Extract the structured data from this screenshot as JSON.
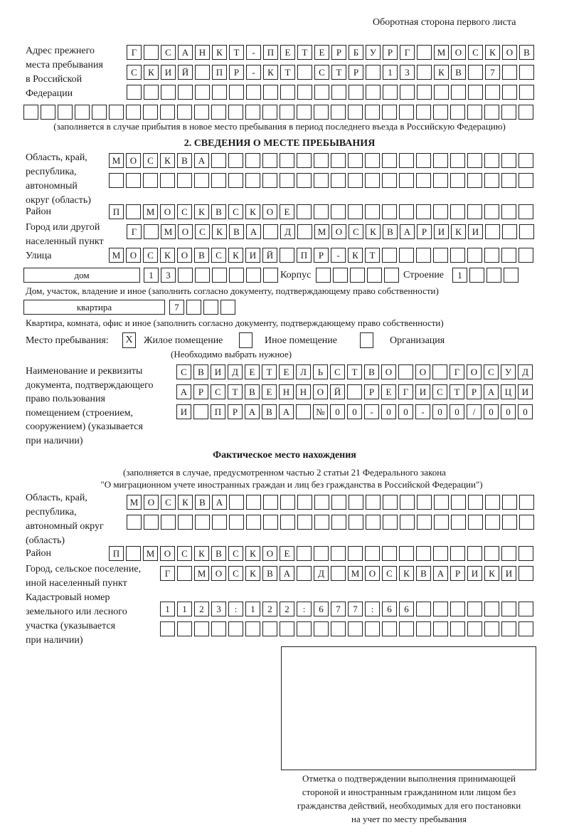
{
  "header": "Оборотная сторона первого листа",
  "previous_address": {
    "label": [
      "Адрес прежнего",
      "места пребывания",
      "в Российской",
      "Федерации"
    ],
    "rows": [
      [
        "Г",
        "",
        "С",
        "А",
        "Н",
        "К",
        "Т",
        "-",
        "П",
        "Е",
        "Т",
        "Е",
        "Р",
        "Б",
        "У",
        "Р",
        "Г",
        "",
        "М",
        "О",
        "С",
        "К",
        "О",
        "В"
      ],
      [
        "С",
        "К",
        "И",
        "Й",
        "",
        "П",
        "Р",
        "-",
        "К",
        "Т",
        "",
        "С",
        "Т",
        "Р",
        "",
        "1",
        "3",
        "",
        "К",
        "В",
        "",
        "7",
        "",
        ""
      ],
      [
        "",
        "",
        "",
        "",
        "",
        "",
        "",
        "",
        "",
        "",
        "",
        "",
        "",
        "",
        "",
        "",
        "",
        "",
        "",
        "",
        "",
        "",
        "",
        ""
      ],
      [
        "",
        "",
        "",
        "",
        "",
        "",
        "",
        "",
        "",
        "",
        "",
        "",
        "",
        "",
        "",
        "",
        "",
        "",
        "",
        "",
        "",
        "",
        "",
        "",
        "",
        "",
        "",
        "",
        "",
        ""
      ]
    ],
    "note": "(заполняется в случае прибытия в новое место пребывания в период последнего въезда в Российскую Федерацию)"
  },
  "section2": {
    "title": "2. СВЕДЕНИЯ О МЕСТЕ ПРЕБЫВАНИЯ",
    "region": {
      "label": [
        "Область, край,",
        "республика,",
        "автономный",
        "округ (область)"
      ],
      "rows": [
        [
          "М",
          "О",
          "С",
          "К",
          "В",
          "А",
          "",
          "",
          "",
          "",
          "",
          "",
          "",
          "",
          "",
          "",
          "",
          "",
          "",
          "",
          "",
          "",
          "",
          "",
          ""
        ],
        [
          "",
          "",
          "",
          "",
          "",
          "",
          "",
          "",
          "",
          "",
          "",
          "",
          "",
          "",
          "",
          "",
          "",
          "",
          "",
          "",
          "",
          "",
          "",
          "",
          ""
        ]
      ]
    },
    "district": {
      "label": "Район",
      "row": [
        "П",
        "",
        "М",
        "О",
        "С",
        "К",
        "В",
        "С",
        "К",
        "О",
        "Е",
        "",
        "",
        "",
        "",
        "",
        "",
        "",
        "",
        "",
        "",
        "",
        "",
        "",
        ""
      ]
    },
    "city": {
      "label": [
        "Город или другой",
        "населенный пункт"
      ],
      "row": [
        "Г",
        "",
        "М",
        "О",
        "С",
        "К",
        "В",
        "А",
        "",
        "Д",
        "",
        "М",
        "О",
        "С",
        "К",
        "В",
        "А",
        "Р",
        "И",
        "К",
        "И",
        "",
        "",
        ""
      ]
    },
    "street": {
      "label": "Улица",
      "row": [
        "М",
        "О",
        "С",
        "К",
        "О",
        "В",
        "С",
        "К",
        "И",
        "Й",
        "",
        "П",
        "Р",
        "-",
        "К",
        "Т",
        "",
        "",
        "",
        "",
        "",
        "",
        "",
        "",
        ""
      ]
    },
    "house": {
      "type": "дом",
      "number": [
        "1",
        "3",
        "",
        "",
        "",
        "",
        "",
        ""
      ],
      "korpus_label": "Корпус",
      "korpus": [
        "",
        "",
        "",
        "",
        ""
      ],
      "stroenie_label": "Строение",
      "stroenie": [
        "1",
        "",
        "",
        ""
      ],
      "caption": "Дом, участок, владение и иное (заполнить согласно документу, подтверждающему право собственности)"
    },
    "apartment": {
      "type": "квартира",
      "number": [
        "7",
        "",
        "",
        ""
      ],
      "caption": "Квартира, комната, офис и иное (заполнить согласно документу, подтверждающему право собственности)"
    },
    "place_type": {
      "label": "Место пребывания:",
      "options": [
        {
          "label": "Жилое помещение",
          "mark": "X"
        },
        {
          "label": "Иное помещение",
          "mark": ""
        },
        {
          "label": "Организация",
          "mark": ""
        }
      ],
      "hint": "(Необходимо выбрать нужное)"
    },
    "document": {
      "label": [
        "Наименование и реквизиты",
        "документа, подтверждающего",
        "право пользования",
        "помещением (строением,",
        "сооружением) (указывается",
        "при наличии)"
      ],
      "rows": [
        [
          "С",
          "В",
          "И",
          "Д",
          "Е",
          "Т",
          "Е",
          "Л",
          "Ь",
          "С",
          "Т",
          "В",
          "О",
          "",
          "О",
          "",
          "Г",
          "О",
          "С",
          "У",
          "Д"
        ],
        [
          "А",
          "Р",
          "С",
          "Т",
          "В",
          "Е",
          "Н",
          "Н",
          "О",
          "Й",
          "",
          "Р",
          "Е",
          "Г",
          "И",
          "С",
          "Т",
          "Р",
          "А",
          "Ц",
          "И"
        ],
        [
          "И",
          "",
          "П",
          "Р",
          "А",
          "В",
          "А",
          "",
          "№",
          "0",
          "0",
          "-",
          "0",
          "0",
          "-",
          "0",
          "0",
          "/",
          "0",
          "0",
          "0"
        ]
      ]
    }
  },
  "actual_location": {
    "title": "Фактическое место нахождения",
    "note": [
      "(заполняется в случае, предусмотренном частью 2 статьи 21 Федерального закона",
      "\"О миграционном учете иностранных граждан и лиц без гражданства в Российской Федерации\")"
    ],
    "region": {
      "label": [
        "Область, край,",
        "республика,",
        "автономный округ",
        "(область)"
      ],
      "rows": [
        [
          "М",
          "О",
          "С",
          "К",
          "В",
          "А",
          "",
          "",
          "",
          "",
          "",
          "",
          "",
          "",
          "",
          "",
          "",
          "",
          "",
          "",
          "",
          "",
          "",
          ""
        ],
        [
          "",
          "",
          "",
          "",
          "",
          "",
          "",
          "",
          "",
          "",
          "",
          "",
          "",
          "",
          "",
          "",
          "",
          "",
          "",
          "",
          "",
          "",
          "",
          ""
        ]
      ]
    },
    "district": {
      "label": "Район",
      "row": [
        "П",
        "",
        "М",
        "О",
        "С",
        "К",
        "В",
        "С",
        "К",
        "О",
        "Е",
        "",
        "",
        "",
        "",
        "",
        "",
        "",
        "",
        "",
        "",
        "",
        "",
        "",
        ""
      ]
    },
    "city": {
      "label": [
        "Город, сельское поселение,",
        "иной населенный пункт"
      ],
      "row": [
        "Г",
        "",
        "М",
        "О",
        "С",
        "К",
        "В",
        "А",
        "",
        "Д",
        "",
        "М",
        "О",
        "С",
        "К",
        "В",
        "А",
        "Р",
        "И",
        "К",
        "И",
        ""
      ]
    },
    "cadastral": {
      "label": [
        "Кадастровый номер",
        "земельного или лесного",
        "участка (указывается",
        "при наличии)"
      ],
      "rows": [
        [
          "1",
          "1",
          "2",
          "3",
          ":",
          "1",
          "2",
          "2",
          ":",
          "6",
          "7",
          "7",
          ":",
          "6",
          "6",
          "",
          "",
          "",
          "",
          "",
          "",
          ""
        ],
        [
          "",
          "",
          "",
          "",
          "",
          "",
          "",
          "",
          "",
          "",
          "",
          "",
          "",
          "",
          "",
          "",
          "",
          "",
          "",
          "",
          "",
          ""
        ]
      ]
    }
  },
  "stamp": {
    "caption": [
      "Отметка о подтверждении выполнения принимающей",
      "стороной и иностранным гражданином или лицом без",
      "гражданства действий, необходимых для его постановки",
      "на учет по месту пребывания"
    ]
  }
}
